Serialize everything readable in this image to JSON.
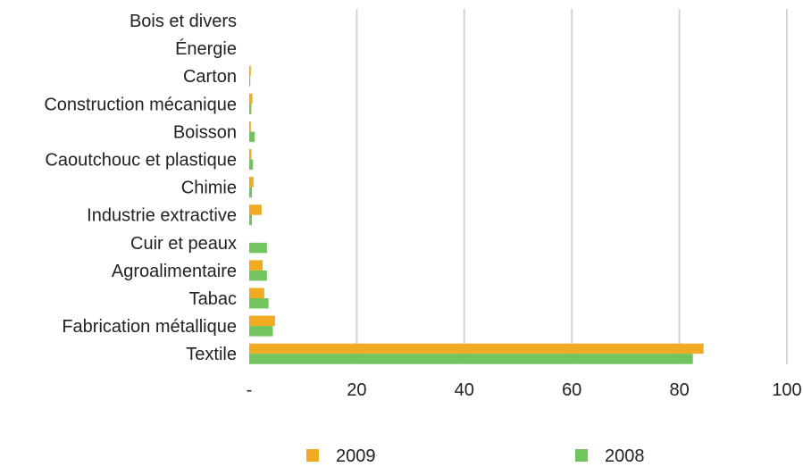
{
  "chart_data": {
    "type": "bar",
    "orientation": "horizontal",
    "title": "",
    "xlabel": "",
    "ylabel": "",
    "categories": [
      "Bois et divers",
      "Énergie",
      "Carton",
      "Construction mécanique",
      "Boisson",
      "Caoutchouc et plastique",
      "Chimie",
      "Industrie extractive",
      "Cuir et peaux",
      "Agroalimentaire",
      "Tabac",
      "Fabrication métallique",
      "Textile"
    ],
    "series": [
      {
        "name": "2009",
        "color": "#f0ab22",
        "values": [
          0,
          0,
          0.3,
          0.6,
          0.3,
          0.4,
          0.8,
          2.3,
          0,
          2.5,
          2.8,
          4.8,
          84.5
        ]
      },
      {
        "name": "2008",
        "color": "#72c45e",
        "values": [
          0,
          0,
          0.2,
          0.4,
          1.0,
          0.7,
          0.5,
          0.5,
          3.3,
          3.3,
          3.6,
          4.4,
          82.5
        ]
      }
    ],
    "xlim": [
      0,
      100
    ],
    "xticks": [
      0,
      20,
      40,
      60,
      80,
      100
    ],
    "xtick_labels": [
      "-",
      "20",
      "40",
      "60",
      "80",
      "100"
    ],
    "grid": "vertical",
    "legend_position": "bottom"
  }
}
